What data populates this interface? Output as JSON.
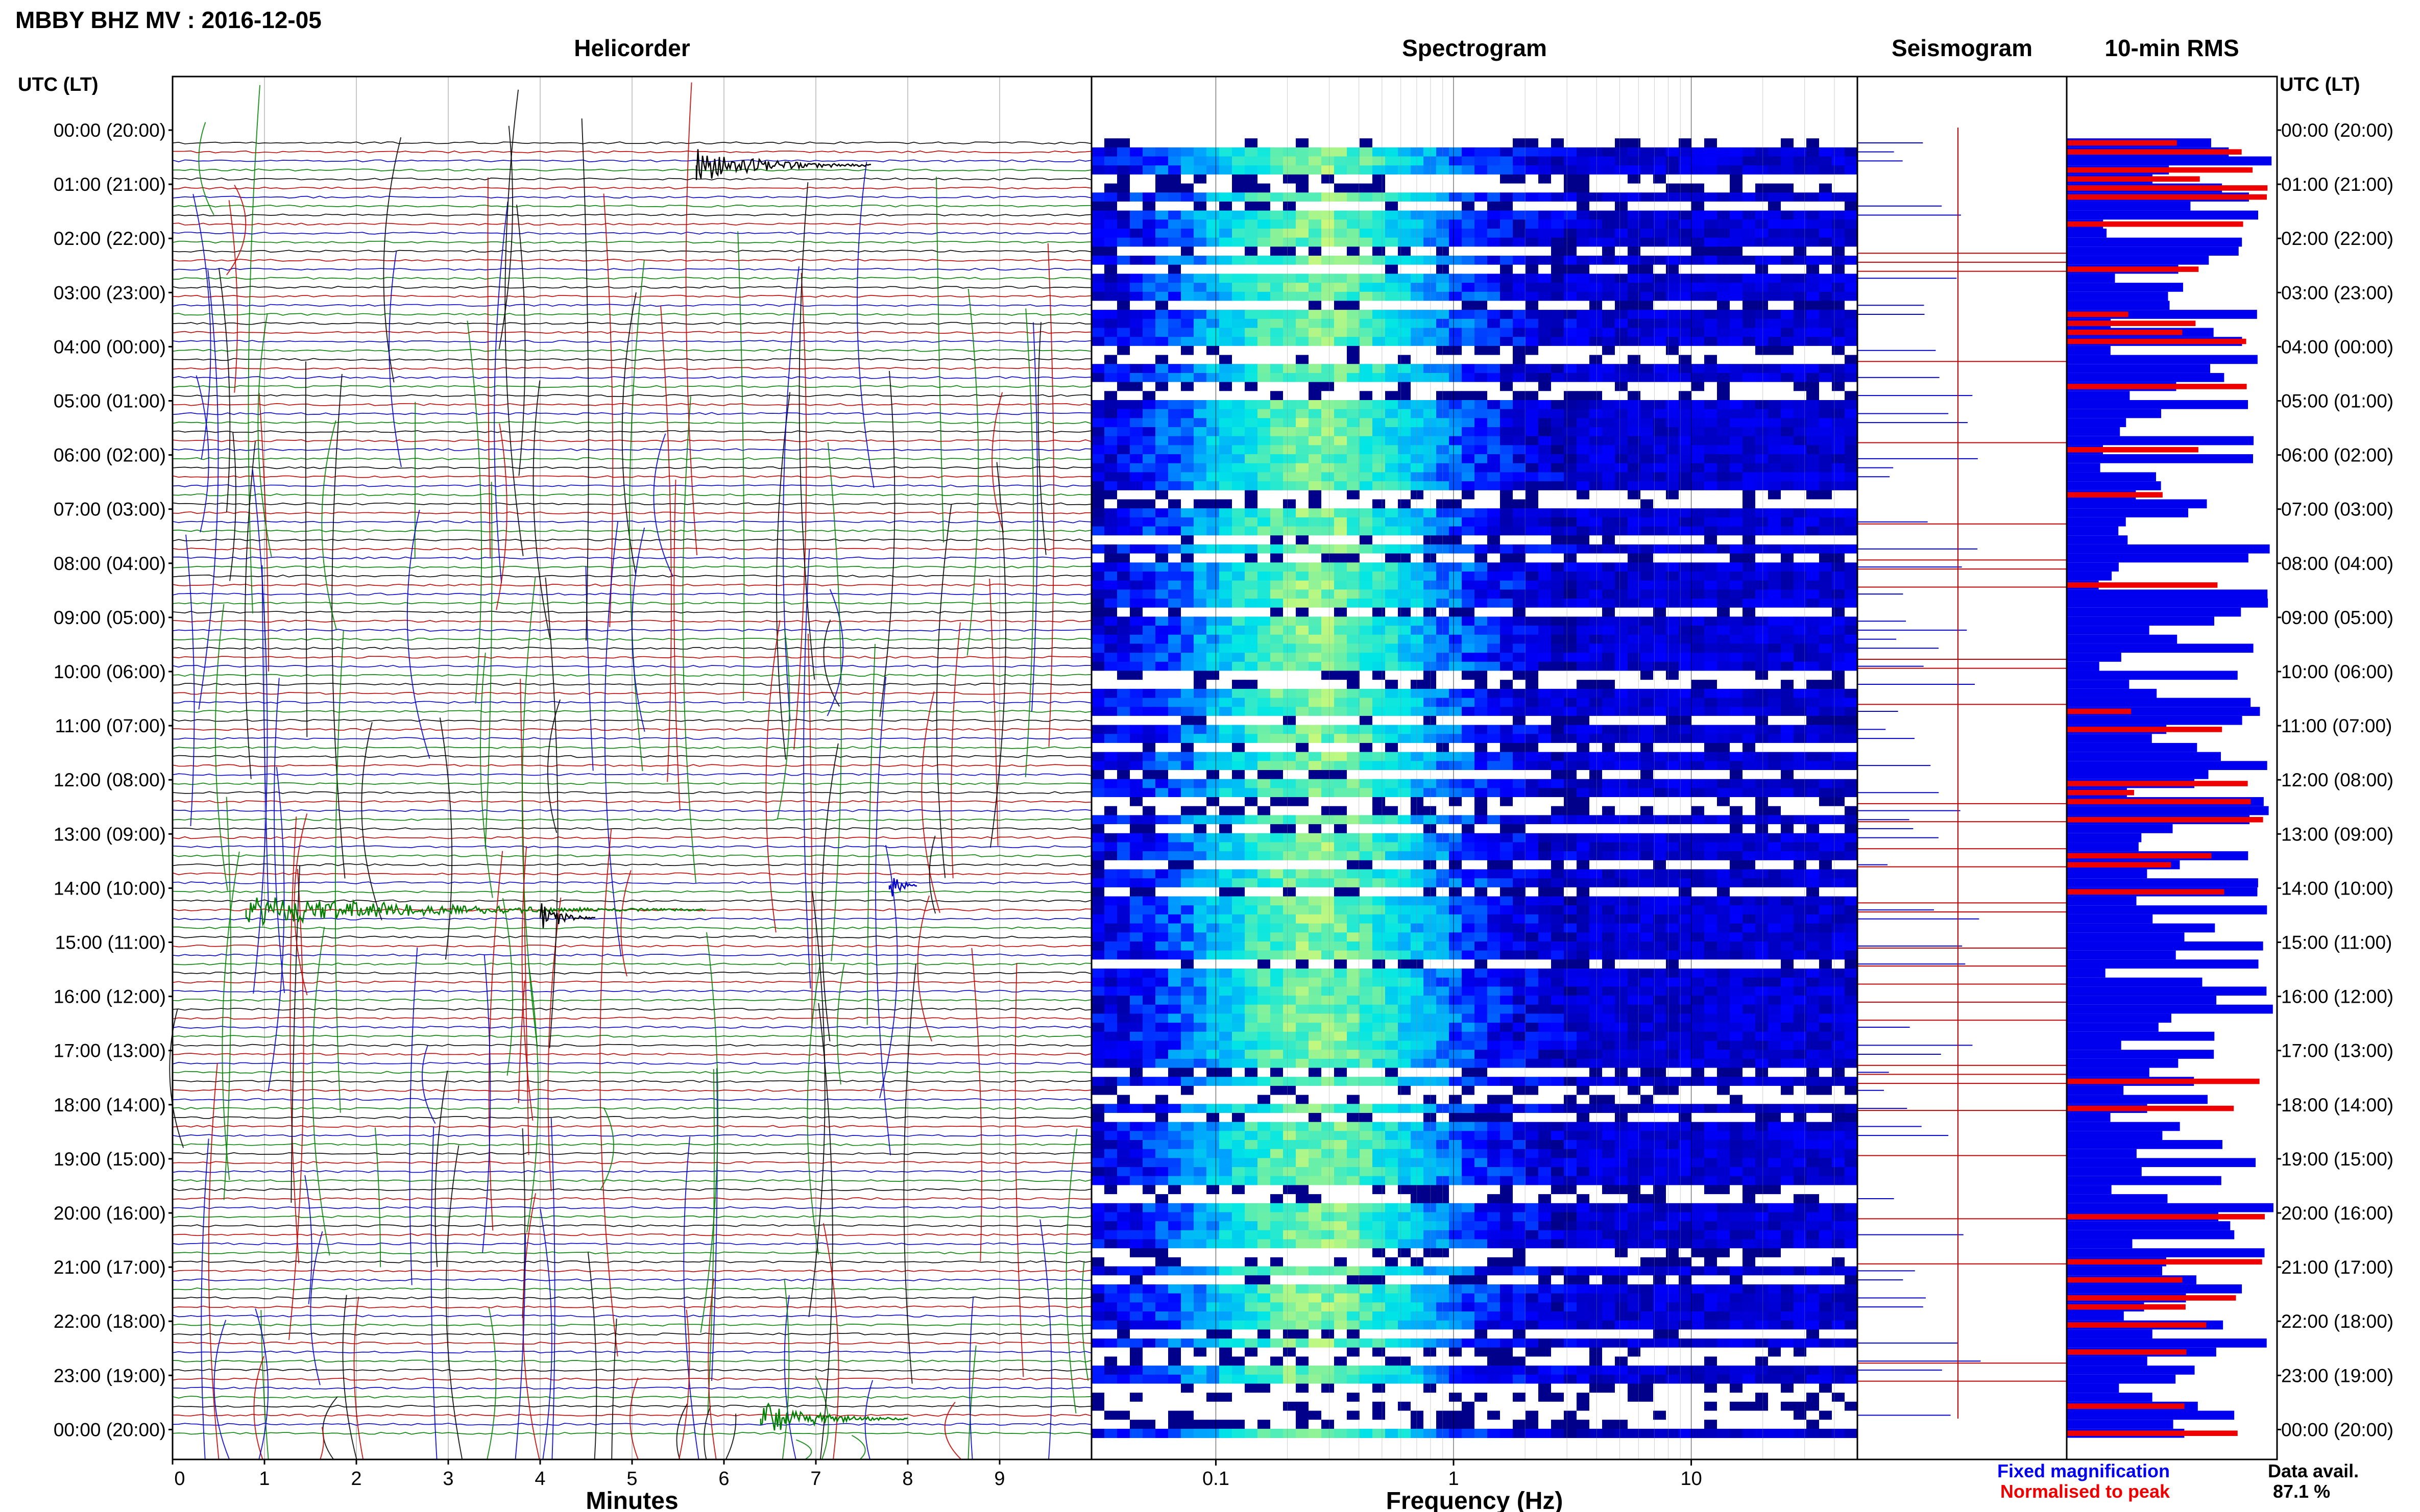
{
  "header": {
    "title": "MBBY BHZ MV : 2016-12-05",
    "time_axis_label": "UTC (LT)"
  },
  "panels": {
    "helicorder": "Helicorder",
    "spectrogram": "Spectrogram",
    "seismogram": "Seismogram",
    "rms": "10-min RMS"
  },
  "hour_labels": [
    "00:00 (20:00)",
    "01:00 (21:00)",
    "02:00 (22:00)",
    "03:00 (23:00)",
    "04:00 (00:00)",
    "05:00 (01:00)",
    "06:00 (02:00)",
    "07:00 (03:00)",
    "08:00 (04:00)",
    "09:00 (05:00)",
    "10:00 (06:00)",
    "11:00 (07:00)",
    "12:00 (08:00)",
    "13:00 (09:00)",
    "14:00 (10:00)",
    "15:00 (11:00)",
    "16:00 (12:00)",
    "17:00 (13:00)",
    "18:00 (14:00)",
    "19:00 (15:00)",
    "20:00 (16:00)",
    "21:00 (17:00)",
    "22:00 (18:00)",
    "23:00 (19:00)",
    "00:00 (20:00)"
  ],
  "footer": {
    "minutes_label": "Minutes",
    "frequency_label": "Frequency (Hz)",
    "legend_fixed": "Fixed magnification",
    "legend_normalised": "Normalised to peak",
    "availability_label": "Data avail.",
    "availability_value": "87.1 %"
  },
  "colors": {
    "trace_black": "#000000",
    "trace_red": "#c00000",
    "trace_blue": "#0000c8",
    "trace_green": "#008000",
    "rms_fixed": "#0000ee",
    "rms_normalised": "#ee0000",
    "spectro_low": "#00008b",
    "spectro_high": "#ffff66"
  },
  "chart_data": [
    {
      "type": "line",
      "panel": "helicorder",
      "x_label": "Minutes",
      "x_ticks": [
        0,
        1,
        2,
        3,
        4,
        5,
        6,
        7,
        8,
        9
      ],
      "xlim": [
        0,
        10
      ],
      "y": "UTC hour rows 00:00 to 24:00, one trace per 10-min block",
      "trace_colors_cycle": [
        "black",
        "red",
        "blue",
        "green"
      ],
      "events": [
        {
          "hour": 0.65,
          "start_min": 5.7,
          "end_min": 7.6,
          "color": "black"
        },
        {
          "hour": 13.95,
          "start_min": 7.8,
          "end_min": 8.1,
          "color": "blue"
        },
        {
          "hour": 14.4,
          "start_min": 0.8,
          "end_min": 5.8,
          "color": "green"
        },
        {
          "hour": 14.55,
          "start_min": 4.0,
          "end_min": 4.6,
          "color": "black"
        },
        {
          "hour": 23.8,
          "start_min": 6.4,
          "end_min": 8.0,
          "color": "green"
        }
      ]
    },
    {
      "type": "heatmap",
      "panel": "spectrogram",
      "x_label": "Frequency (Hz)",
      "x_scale": "log",
      "x_ticks": [
        "0.1",
        "1",
        "10"
      ],
      "xlim": [
        0.03,
        50
      ]
    },
    {
      "type": "bar",
      "panel": "rms",
      "orientation": "horizontal",
      "rows": 144,
      "series": [
        {
          "name": "Fixed magnification",
          "color": "blue"
        },
        {
          "name": "Normalised to peak",
          "color": "red"
        }
      ]
    }
  ]
}
